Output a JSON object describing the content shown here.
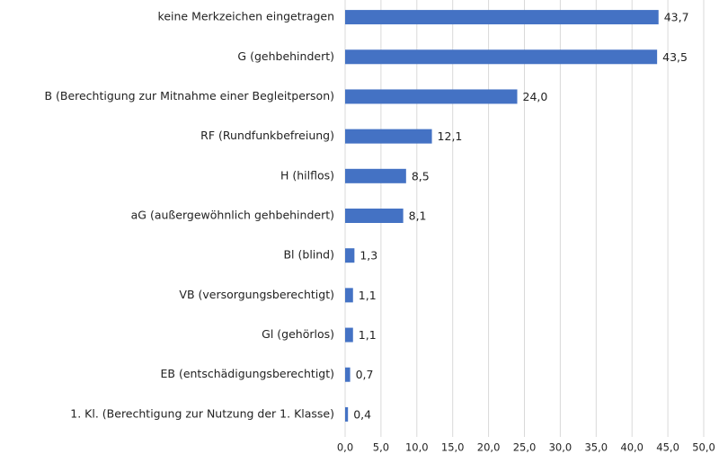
{
  "chart_data": {
    "type": "bar",
    "orientation": "horizontal",
    "categories": [
      "keine Merkzeichen eingetragen",
      "G (gehbehindert)",
      "B (Berechtigung zur Mitnahme einer Begleitperson)",
      "RF (Rundfunkbefreiung)",
      "H (hilflos)",
      "aG (außergewöhnlich gehbehindert)",
      "Bl (blind)",
      "VB (versorgungsberechtigt)",
      "Gl (gehörlos)",
      "EB (entschädigungsberechtigt)",
      "1. Kl. (Berechtigung zur Nutzung der 1. Klasse)"
    ],
    "values": [
      43.7,
      43.5,
      24.0,
      12.1,
      8.5,
      8.1,
      1.3,
      1.1,
      1.1,
      0.7,
      0.4
    ],
    "value_labels": [
      "43,7",
      "43,5",
      "24,0",
      "12,1",
      "8,5",
      "8,1",
      "1,3",
      "1,1",
      "1,1",
      "0,7",
      "0,4"
    ],
    "color": "#4472c4",
    "xlim": [
      0,
      50
    ],
    "xticks": [
      {
        "value": 0,
        "label": "0,0"
      },
      {
        "value": 5,
        "label": "5,0"
      },
      {
        "value": 10,
        "label": "10,0"
      },
      {
        "value": 15,
        "label": "15,0"
      },
      {
        "value": 20,
        "label": "20,0"
      },
      {
        "value": 25,
        "label": "25,0"
      },
      {
        "value": 30,
        "label": "30,0"
      },
      {
        "value": 35,
        "label": "35,0"
      },
      {
        "value": 40,
        "label": "40,0"
      },
      {
        "value": 45,
        "label": "45,0"
      },
      {
        "value": 50,
        "label": "50,0"
      }
    ],
    "grid": true
  }
}
